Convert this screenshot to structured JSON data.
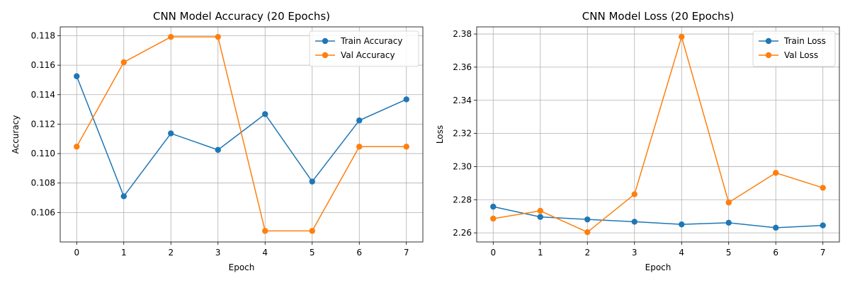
{
  "chart_data": [
    {
      "type": "line",
      "title": "CNN Model Accuracy (20 Epochs)",
      "xlabel": "Epoch",
      "ylabel": "Accuracy",
      "x": [
        0,
        1,
        2,
        3,
        4,
        5,
        6,
        7
      ],
      "xticks": [
        "0",
        "1",
        "2",
        "3",
        "4",
        "5",
        "6",
        "7"
      ],
      "xlim": [
        -0.35,
        7.35
      ],
      "ylim": [
        0.104,
        0.1186
      ],
      "yticks": [
        "0.106",
        "0.108",
        "0.110",
        "0.112",
        "0.114",
        "0.116",
        "0.118"
      ],
      "grid": true,
      "legend_position": "top-right",
      "series": [
        {
          "name": "Train Accuracy",
          "color": "#1f77b4",
          "values": [
            0.11525,
            0.1071,
            0.11137,
            0.11025,
            0.11268,
            0.1081,
            0.11225,
            0.11368
          ]
        },
        {
          "name": "Val Accuracy",
          "color": "#ff7f0e",
          "values": [
            0.11047,
            0.1162,
            0.11792,
            0.11792,
            0.10475,
            0.10475,
            0.11047,
            0.11047
          ]
        }
      ]
    },
    {
      "type": "line",
      "title": "CNN Model Loss (20 Epochs)",
      "xlabel": "Epoch",
      "ylabel": "Loss",
      "x": [
        0,
        1,
        2,
        3,
        4,
        5,
        6,
        7
      ],
      "xticks": [
        "0",
        "1",
        "2",
        "3",
        "4",
        "5",
        "6",
        "7"
      ],
      "xlim": [
        -0.35,
        7.35
      ],
      "ylim": [
        2.2545,
        2.3843
      ],
      "yticks": [
        "2.26",
        "2.28",
        "2.30",
        "2.32",
        "2.34",
        "2.36",
        "2.38"
      ],
      "grid": true,
      "legend_position": "top-right",
      "series": [
        {
          "name": "Train Loss",
          "color": "#1f77b4",
          "values": [
            2.2758,
            2.2696,
            2.2681,
            2.2667,
            2.2651,
            2.2661,
            2.2631,
            2.2645
          ]
        },
        {
          "name": "Val Loss",
          "color": "#ff7f0e",
          "values": [
            2.2686,
            2.2733,
            2.2604,
            2.2833,
            2.3783,
            2.2783,
            2.2962,
            2.2872
          ]
        }
      ]
    }
  ]
}
